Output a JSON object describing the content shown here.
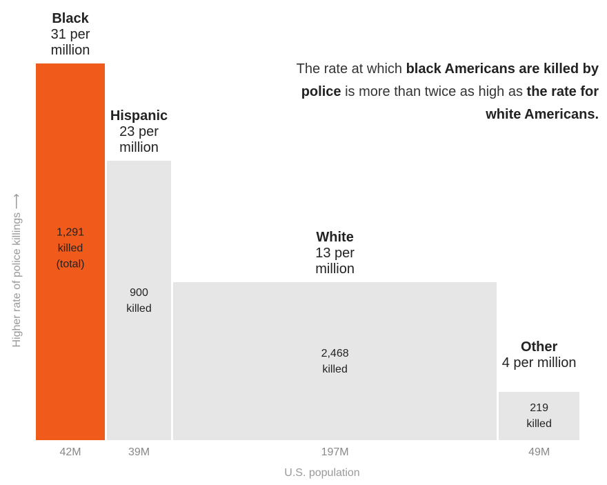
{
  "chart_data": {
    "type": "bar",
    "subtype": "variable-width",
    "categories": [
      "Black",
      "Hispanic",
      "White",
      "Other"
    ],
    "rate_per_million": [
      31,
      23,
      13,
      4
    ],
    "rate_labels": [
      "31 per million",
      "23 per million",
      "13 per million",
      "4 per million"
    ],
    "killed": [
      "1,291",
      "900",
      "2,468",
      "219"
    ],
    "killed_suffix": [
      "killed",
      "killed",
      "killed",
      "killed"
    ],
    "killed_extra": [
      "(total)",
      "",
      "",
      ""
    ],
    "population_millions": [
      42,
      39,
      197,
      49
    ],
    "population_labels": [
      "42M",
      "39M",
      "197M",
      "49M"
    ],
    "xlabel": "U.S. population",
    "ylabel": "Higher rate of police killings ⟶",
    "colors": [
      "#f05a1a",
      "#e6e6e6",
      "#e6e6e6",
      "#e6e6e6"
    ]
  },
  "annotation": {
    "parts": [
      {
        "t": "The rate at which ",
        "b": false
      },
      {
        "t": "black Americans are killed by police",
        "b": true
      },
      {
        "t": " is more than twice as high as ",
        "b": false
      },
      {
        "t": "the rate for white Americans.",
        "b": true
      }
    ]
  }
}
